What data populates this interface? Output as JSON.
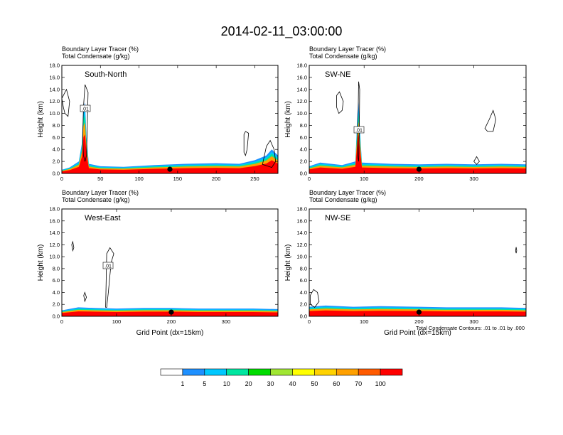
{
  "title": "2014-02-11_03:00:00",
  "colors": {
    "levels": [
      "#ffffff",
      "#1e90ff",
      "#00c8ff",
      "#00e6a0",
      "#00dc00",
      "#a0e632",
      "#ffff00",
      "#ffd200",
      "#ffa000",
      "#ff5a00",
      "#ff0000"
    ]
  },
  "colorbar": {
    "labels": [
      "1",
      "5",
      "10",
      "20",
      "30",
      "40",
      "50",
      "60",
      "70",
      "100"
    ]
  },
  "footnote": "Total Condensate Contours: .01 to .01 by .000",
  "chart_data": [
    {
      "type": "heatmap",
      "name": "South-North",
      "header": [
        "Boundary Layer Tracer   (%)",
        "Total Condensate   (g/kg)"
      ],
      "xlabel": "",
      "ylabel": "Height (km)",
      "xlim": [
        0,
        280
      ],
      "ylim": [
        0,
        18
      ],
      "xticks": [
        "0",
        "50",
        "100",
        "150",
        "200",
        "250"
      ],
      "yticks": [
        "0.0",
        "2.0",
        "4.0",
        "6.0",
        "8.0",
        "10.0",
        "12.0",
        "14.0",
        "16.0",
        "18.0"
      ],
      "contour_label": ".01",
      "tracer_top_km": [
        [
          0,
          0.6
        ],
        [
          10,
          1.0
        ],
        [
          22,
          2.0
        ],
        [
          26,
          5.0
        ],
        [
          28,
          11.0
        ],
        [
          30,
          11.8
        ],
        [
          32,
          6.0
        ],
        [
          35,
          1.6
        ],
        [
          50,
          1.2
        ],
        [
          80,
          1.1
        ],
        [
          120,
          1.4
        ],
        [
          160,
          1.6
        ],
        [
          200,
          1.7
        ],
        [
          230,
          1.6
        ],
        [
          250,
          2.2
        ],
        [
          265,
          3.0
        ],
        [
          272,
          4.0
        ],
        [
          280,
          3.0
        ]
      ],
      "marker_x": 140
    },
    {
      "type": "heatmap",
      "name": "SW-NE",
      "header": [
        "Boundary Layer Tracer   (%)",
        "Total Condensate   (g/kg)"
      ],
      "xlabel": "",
      "ylabel": "Height (km)",
      "xlim": [
        0,
        395
      ],
      "ylim": [
        0,
        18
      ],
      "xticks": [
        "0",
        "100",
        "200",
        "300"
      ],
      "yticks": [
        "0.0",
        "2.0",
        "4.0",
        "6.0",
        "8.0",
        "10.0",
        "12.0",
        "14.0",
        "16.0",
        "18.0"
      ],
      "contour_label": ".01",
      "tracer_top_km": [
        [
          0,
          1.2
        ],
        [
          20,
          1.8
        ],
        [
          60,
          1.4
        ],
        [
          84,
          2.0
        ],
        [
          88,
          10.0
        ],
        [
          90,
          12.0
        ],
        [
          92,
          8.0
        ],
        [
          96,
          1.8
        ],
        [
          150,
          1.6
        ],
        [
          200,
          1.5
        ],
        [
          250,
          1.6
        ],
        [
          300,
          1.5
        ],
        [
          350,
          1.6
        ],
        [
          395,
          1.5
        ]
      ],
      "marker_x": 200
    },
    {
      "type": "heatmap",
      "name": "West-East",
      "header": [
        "Boundary Layer Tracer   (%)",
        "Total Condensate   (g/kg)"
      ],
      "xlabel": "Grid Point (dx=15km)",
      "ylabel": "Height (km)",
      "xlim": [
        0,
        395
      ],
      "ylim": [
        0,
        18
      ],
      "xticks": [
        "0",
        "100",
        "200",
        "300"
      ],
      "yticks": [
        "0.0",
        "2.0",
        "4.0",
        "6.0",
        "8.0",
        "10.0",
        "12.0",
        "14.0",
        "16.0",
        "18.0"
      ],
      "contour_label": ".01",
      "tracer_top_km": [
        [
          0,
          1.0
        ],
        [
          30,
          1.5
        ],
        [
          60,
          1.4
        ],
        [
          100,
          1.3
        ],
        [
          150,
          1.4
        ],
        [
          200,
          1.4
        ],
        [
          250,
          1.3
        ],
        [
          300,
          1.3
        ],
        [
          350,
          1.3
        ],
        [
          395,
          1.2
        ]
      ],
      "marker_x": 200
    },
    {
      "type": "heatmap",
      "name": "NW-SE",
      "header": [
        "Boundary Layer Tracer   (%)",
        "Total Condensate   (g/kg)"
      ],
      "xlabel": "Grid Point (dx=15km)",
      "ylabel": "Height (km)",
      "xlim": [
        0,
        395
      ],
      "ylim": [
        0,
        18
      ],
      "xticks": [
        "0",
        "100",
        "200",
        "300"
      ],
      "yticks": [
        "0.0",
        "2.0",
        "4.0",
        "6.0",
        "8.0",
        "10.0",
        "12.0",
        "14.0",
        "16.0",
        "18.0"
      ],
      "contour_label": "",
      "tracer_top_km": [
        [
          0,
          1.6
        ],
        [
          30,
          1.8
        ],
        [
          80,
          1.6
        ],
        [
          130,
          1.7
        ],
        [
          200,
          1.6
        ],
        [
          250,
          1.5
        ],
        [
          300,
          1.5
        ],
        [
          350,
          1.5
        ],
        [
          395,
          1.4
        ]
      ],
      "marker_x": 200
    }
  ]
}
